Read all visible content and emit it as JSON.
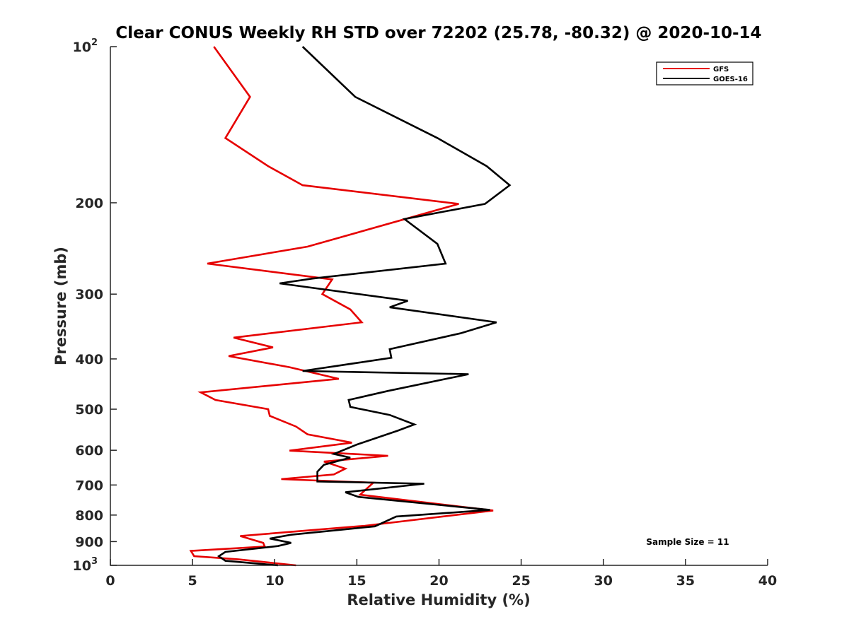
{
  "chart_data": {
    "type": "line",
    "title": "Clear CONUS Weekly RH STD over 72202 (25.78, -80.32) @ 2020-10-14",
    "xlabel": "Relative Humidity (%)",
    "ylabel": "Pressure (mb)",
    "xlim": [
      0,
      40
    ],
    "ylim": [
      100,
      1000
    ],
    "yscale": "log",
    "yreversed": true,
    "grid": false,
    "legend_position": "top-right",
    "x_ticks": [
      "0",
      "5",
      "10",
      "15",
      "20",
      "25",
      "30",
      "35",
      "40"
    ],
    "x_tick_values": [
      0,
      5,
      10,
      15,
      20,
      25,
      30,
      35,
      40
    ],
    "y_ticks": [
      {
        "value": 100,
        "base": "10",
        "exp": "2"
      },
      {
        "value": 200,
        "label": "200"
      },
      {
        "value": 300,
        "label": "300"
      },
      {
        "value": 400,
        "label": "400"
      },
      {
        "value": 500,
        "label": "500"
      },
      {
        "value": 600,
        "label": "600"
      },
      {
        "value": 700,
        "label": "700"
      },
      {
        "value": 800,
        "label": "800"
      },
      {
        "value": 900,
        "label": "900"
      },
      {
        "value": 1000,
        "base": "10",
        "exp": "3"
      }
    ],
    "annotation": "Sample Size = 11",
    "series": [
      {
        "name": "GFS",
        "color": "#e60000",
        "points": [
          [
            6.3,
            100
          ],
          [
            8.5,
            125
          ],
          [
            7.0,
            150
          ],
          [
            9.6,
            170
          ],
          [
            11.7,
            185
          ],
          [
            21.2,
            201
          ],
          [
            12.0,
            243
          ],
          [
            5.9,
            262
          ],
          [
            13.5,
            281
          ],
          [
            12.9,
            300
          ],
          [
            14.6,
            321
          ],
          [
            15.3,
            340
          ],
          [
            7.5,
            364
          ],
          [
            9.9,
            380
          ],
          [
            7.2,
            395
          ],
          [
            10.9,
            415
          ],
          [
            13.9,
            437
          ],
          [
            5.5,
            464
          ],
          [
            6.4,
            480
          ],
          [
            9.6,
            500
          ],
          [
            9.7,
            515
          ],
          [
            11.3,
            540
          ],
          [
            12.0,
            559
          ],
          [
            14.7,
            580
          ],
          [
            10.9,
            601
          ],
          [
            16.9,
            615
          ],
          [
            13.0,
            631
          ],
          [
            14.3,
            651
          ],
          [
            13.6,
            668
          ],
          [
            10.4,
            682
          ],
          [
            16.0,
            693
          ],
          [
            15.2,
            731
          ],
          [
            23.3,
            784
          ],
          [
            15.5,
            839
          ],
          [
            7.9,
            878
          ],
          [
            9.3,
            905
          ],
          [
            9.4,
            920
          ],
          [
            4.9,
            938
          ],
          [
            5.1,
            960
          ],
          [
            7.8,
            974
          ],
          [
            11.3,
            1000
          ]
        ]
      },
      {
        "name": "GOES-16",
        "color": "#000000",
        "points": [
          [
            11.7,
            100
          ],
          [
            14.9,
            125
          ],
          [
            19.9,
            150
          ],
          [
            22.9,
            170
          ],
          [
            24.3,
            185
          ],
          [
            22.8,
            201
          ],
          [
            17.9,
            215
          ],
          [
            19.9,
            240
          ],
          [
            20.4,
            262
          ],
          [
            12.3,
            280
          ],
          [
            10.3,
            286
          ],
          [
            18.1,
            309
          ],
          [
            17.0,
            318
          ],
          [
            23.5,
            340
          ],
          [
            21.3,
            357
          ],
          [
            17.0,
            383
          ],
          [
            17.1,
            398
          ],
          [
            11.7,
            422
          ],
          [
            21.8,
            428
          ],
          [
            16.9,
            461
          ],
          [
            14.5,
            480
          ],
          [
            14.6,
            495
          ],
          [
            17.0,
            513
          ],
          [
            18.5,
            535
          ],
          [
            17.5,
            550
          ],
          [
            15.0,
            585
          ],
          [
            13.6,
            610
          ],
          [
            14.6,
            620
          ],
          [
            13.0,
            640
          ],
          [
            12.6,
            660
          ],
          [
            12.6,
            689
          ],
          [
            19.1,
            696
          ],
          [
            14.3,
            723
          ],
          [
            15.1,
            738
          ],
          [
            23.1,
            782
          ],
          [
            17.4,
            805
          ],
          [
            16.1,
            841
          ],
          [
            11.0,
            873
          ],
          [
            9.7,
            888
          ],
          [
            11.0,
            905
          ],
          [
            10.2,
            918
          ],
          [
            7.0,
            942
          ],
          [
            6.6,
            960
          ],
          [
            7.0,
            980
          ],
          [
            10.2,
            1000
          ]
        ]
      }
    ]
  }
}
